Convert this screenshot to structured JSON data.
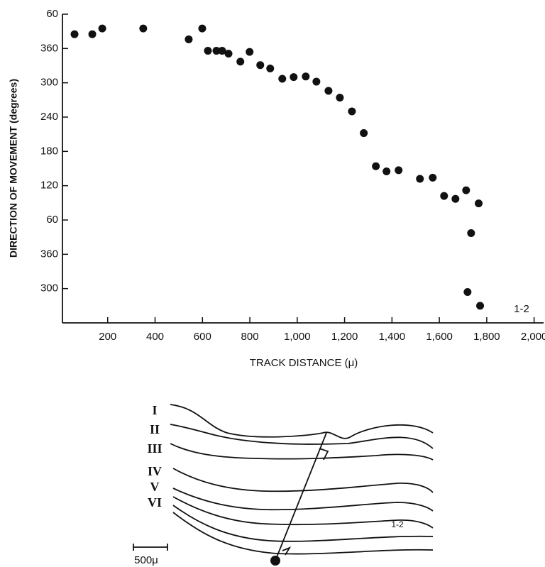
{
  "chart_data": {
    "type": "scatter",
    "x_label": "TRACK DISTANCE (μ)",
    "y_label": "DIRECTION OF MOVEMENT (degrees)",
    "annotation": "1-2",
    "color": "#111111",
    "xlim": [
      0,
      2040
    ],
    "ylim": [
      -120,
      420
    ],
    "xticks": [
      200,
      400,
      600,
      800,
      {
        "value": 1000,
        "label": "1,000"
      },
      {
        "value": 1200,
        "label": "1,200"
      },
      {
        "value": 1400,
        "label": "1,400"
      },
      {
        "value": 1600,
        "label": "1,600"
      },
      {
        "value": 1800,
        "label": "1,800"
      },
      {
        "value": 2000,
        "label": "2,000"
      }
    ],
    "yticks": [
      {
        "value": 420,
        "label": "60"
      },
      360,
      300,
      240,
      180,
      120,
      60,
      {
        "value": 0,
        "label": "360"
      },
      {
        "value": -60,
        "label": "300"
      }
    ],
    "x": [
      60,
      135,
      177,
      350,
      542,
      599,
      623,
      659,
      683,
      710,
      760,
      799,
      844,
      886,
      937,
      985,
      1036,
      1081,
      1132,
      1180,
      1231,
      1281,
      1332,
      1377,
      1428,
      1518,
      1572,
      1620,
      1668,
      1713,
      1766,
      1734,
      1719,
      1772
    ],
    "values": [
      385,
      385,
      395,
      395,
      376,
      395,
      356,
      356,
      356,
      351,
      337,
      354,
      331,
      325,
      307,
      310,
      311,
      302,
      286,
      274,
      250,
      212,
      154,
      145,
      147,
      132,
      134,
      102,
      97,
      112,
      89,
      37,
      -66,
      -90
    ]
  },
  "diagram": {
    "layer_labels": [
      "I",
      "II",
      "III",
      "IV",
      "V",
      "VI"
    ],
    "track_label": "1-2",
    "scale_label": "500μ"
  }
}
